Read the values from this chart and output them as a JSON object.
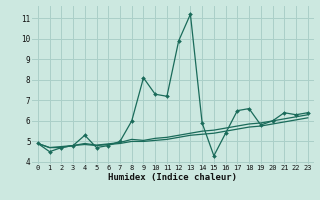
{
  "xlabel": "Humidex (Indice chaleur)",
  "bg_color": "#cce8e0",
  "grid_color": "#aacfc8",
  "line_color": "#1a6b5a",
  "xlim": [
    -0.5,
    23.5
  ],
  "ylim": [
    3.9,
    11.6
  ],
  "xticks": [
    0,
    1,
    2,
    3,
    4,
    5,
    6,
    7,
    8,
    9,
    10,
    11,
    12,
    13,
    14,
    15,
    16,
    17,
    18,
    19,
    20,
    21,
    22,
    23
  ],
  "yticks": [
    4,
    5,
    6,
    7,
    8,
    9,
    10,
    11
  ],
  "series1_x": [
    0,
    1,
    2,
    3,
    4,
    5,
    6,
    7,
    8,
    9,
    10,
    11,
    12,
    13,
    14,
    15,
    16,
    17,
    18,
    19,
    20,
    21,
    22,
    23
  ],
  "series1_y": [
    4.9,
    4.5,
    4.7,
    4.8,
    5.3,
    4.7,
    4.8,
    5.0,
    6.0,
    8.1,
    7.3,
    7.2,
    9.9,
    11.2,
    5.9,
    4.3,
    5.4,
    6.5,
    6.6,
    5.8,
    6.0,
    6.4,
    6.3,
    6.4
  ],
  "series2_x": [
    0,
    1,
    2,
    3,
    4,
    5,
    6,
    7,
    8,
    9,
    10,
    11,
    12,
    13,
    14,
    15,
    16,
    17,
    18,
    19,
    20,
    21,
    22,
    23
  ],
  "series2_y": [
    4.9,
    4.7,
    4.7,
    4.8,
    4.85,
    4.8,
    4.85,
    4.9,
    5.0,
    5.0,
    5.05,
    5.1,
    5.2,
    5.3,
    5.35,
    5.4,
    5.5,
    5.6,
    5.7,
    5.75,
    5.85,
    5.95,
    6.05,
    6.15
  ],
  "series3_x": [
    0,
    1,
    2,
    3,
    4,
    5,
    6,
    7,
    8,
    9,
    10,
    11,
    12,
    13,
    14,
    15,
    16,
    17,
    18,
    19,
    20,
    21,
    22,
    23
  ],
  "series3_y": [
    4.9,
    4.7,
    4.75,
    4.8,
    4.9,
    4.82,
    4.88,
    4.95,
    5.1,
    5.05,
    5.15,
    5.2,
    5.3,
    5.4,
    5.5,
    5.55,
    5.65,
    5.75,
    5.85,
    5.9,
    6.0,
    6.1,
    6.2,
    6.3
  ]
}
